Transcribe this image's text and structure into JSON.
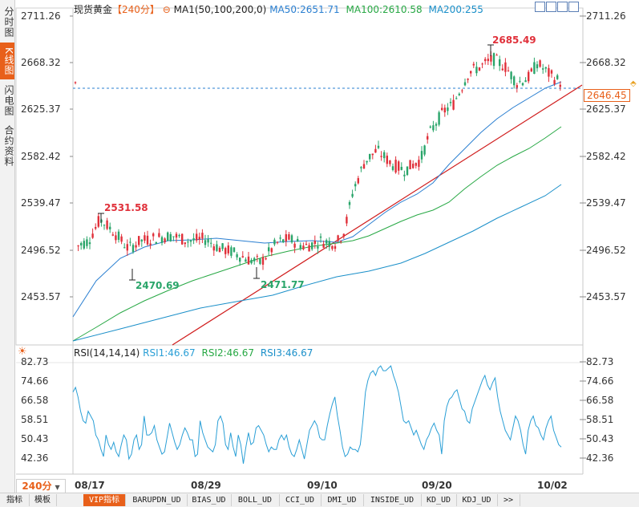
{
  "left_nav": {
    "tabs": [
      {
        "label": "分时图",
        "active": false
      },
      {
        "label": "K线图",
        "active": true
      },
      {
        "label": "闪电图",
        "active": false
      },
      {
        "label": "合约资料",
        "active": false
      }
    ]
  },
  "header": {
    "instrument": "现货黄金",
    "period": "【240分】",
    "indicator": "MA1(50,100,200,0)",
    "ma50": "MA50:2651.71",
    "ma100": "MA100:2610.58",
    "ma200": "MA200:255"
  },
  "price_axis": {
    "ticks": [
      "2711.26",
      "2668.32",
      "2625.37",
      "2582.42",
      "2539.47",
      "2496.52",
      "2453.57"
    ]
  },
  "current_price": "2646.45",
  "annotations": {
    "high": "2685.49",
    "left_high": "2531.58",
    "low1": "2470.69",
    "low2": "2471.77"
  },
  "rsi": {
    "header": "RSI(14,14,14)",
    "rsi1": "RSI1:46.67",
    "rsi2": "RSI2:46.67",
    "rsi3": "RSI3:46.67",
    "ticks": [
      "82.73",
      "74.66",
      "66.58",
      "58.51",
      "50.43",
      "42.36"
    ],
    "values": [
      70,
      72,
      68,
      62,
      58,
      57,
      62,
      60,
      58,
      52,
      50,
      46,
      43,
      52,
      48,
      46,
      49,
      45,
      43,
      48,
      52,
      50,
      42,
      44,
      50,
      52,
      46,
      48,
      60,
      52,
      52,
      53,
      56,
      50,
      47,
      44,
      45,
      51,
      57,
      53,
      49,
      46,
      48,
      52,
      55,
      53,
      50,
      50,
      43,
      44,
      58,
      53,
      50,
      47,
      46,
      45,
      48,
      58,
      60,
      57,
      48,
      46,
      53,
      47,
      43,
      52,
      48,
      40,
      47,
      53,
      48,
      49,
      55,
      56,
      54,
      52,
      48,
      45,
      47,
      46,
      46,
      50,
      52,
      50,
      52,
      47,
      44,
      43,
      46,
      50,
      46,
      42,
      48,
      54,
      56,
      58,
      56,
      51,
      50,
      50,
      56,
      61,
      65,
      68,
      60,
      54,
      47,
      43,
      44,
      47,
      46,
      46,
      45,
      48,
      58,
      70,
      75,
      78,
      79,
      77,
      80,
      81,
      79,
      79,
      80,
      81,
      77,
      74,
      70,
      64,
      58,
      57,
      58,
      55,
      52,
      54,
      51,
      48,
      46,
      50,
      52,
      55,
      57,
      54,
      52,
      44,
      58,
      64,
      67,
      68,
      70,
      71,
      67,
      63,
      62,
      58,
      57,
      63,
      66,
      69,
      72,
      75,
      77,
      73,
      71,
      74,
      76,
      68,
      62,
      58,
      54,
      52,
      50,
      55,
      60,
      58,
      54,
      48,
      44,
      54,
      58,
      60,
      56,
      55,
      52,
      50,
      55,
      58,
      60,
      54,
      51,
      48,
      47
    ]
  },
  "time_axis": {
    "period_label": "240分",
    "labels": [
      "08/17",
      "08/29",
      "09/10",
      "09/20",
      "10/02"
    ]
  },
  "bottom_tabs": [
    {
      "label": "指标",
      "active": false
    },
    {
      "label": "模板",
      "active": false
    },
    {
      "label": "VIP指标",
      "active": true
    },
    {
      "label": "BARUPDN_UD",
      "active": false
    },
    {
      "label": "BIAS_UD",
      "active": false
    },
    {
      "label": "BOLL_UD",
      "active": false
    },
    {
      "label": "CCI_UD",
      "active": false
    },
    {
      "label": "DMI_UD",
      "active": false
    },
    {
      "label": "INSIDE_UD",
      "active": false
    },
    {
      "label": "KD_UD",
      "active": false
    },
    {
      "label": "KDJ_UD",
      "active": false
    },
    {
      "label": ">>",
      "active": false
    }
  ],
  "colors": {
    "up": "#e0303a",
    "down": "#2aa56a",
    "ma50": "#2a7fd1",
    "ma100": "#27a844",
    "ma200": "#1a8fc9",
    "rsi": "#2a9fd6",
    "accent": "#e8601a",
    "grid": "#dddddd"
  }
}
